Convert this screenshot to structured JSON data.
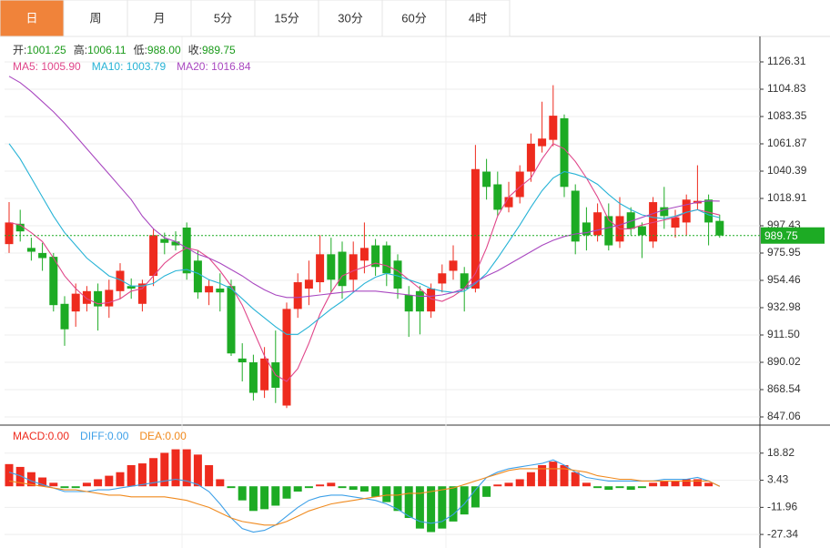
{
  "tabs": [
    "日",
    "周",
    "月",
    "5分",
    "15分",
    "30分",
    "60分",
    "4时"
  ],
  "active_tab": 0,
  "chart_data": [
    {
      "type": "candlestick",
      "info": [
        {
          "label": "开:",
          "value": "1001.25"
        },
        {
          "label": "高:",
          "value": "1006.11"
        },
        {
          "label": "低:",
          "value": "988.00"
        },
        {
          "label": "收:",
          "value": "989.75"
        }
      ],
      "info_value_color": "#1a9a1a",
      "open": [
        983,
        999,
        980,
        976,
        973,
        936,
        930,
        936,
        946,
        934,
        946,
        950,
        936,
        958,
        987,
        985,
        996,
        970,
        945,
        948,
        950,
        893,
        890,
        868,
        890,
        856,
        932,
        948,
        953,
        975,
        977,
        955,
        970,
        982,
        982,
        970,
        943,
        946,
        930,
        952,
        962,
        960,
        948,
        1040,
        1030,
        1012,
        1020,
        1040,
        1060,
        1065,
        1082,
        1025,
        1000,
        990,
        1005,
        985,
        1008,
        997,
        985,
        1012,
        996,
        1000,
        1015,
        1018,
        1001.25
      ],
      "close": [
        1000,
        993,
        977,
        972,
        935,
        916,
        944,
        946,
        934,
        947,
        962,
        948,
        952,
        990,
        984,
        982,
        960,
        945,
        950,
        945,
        897,
        890,
        866,
        893,
        870,
        932,
        953,
        955,
        975,
        955,
        950,
        975,
        980,
        965,
        960,
        948,
        930,
        930,
        948,
        960,
        970,
        948,
        1042,
        1028,
        1010,
        1020,
        1040,
        1062,
        1066,
        1084,
        1028,
        985,
        990,
        1008,
        982,
        1005,
        995,
        990,
        1016,
        1005,
        1004,
        1018,
        1017,
        1000,
        989.75
      ],
      "high": [
        1016,
        1010,
        988,
        984,
        976,
        942,
        952,
        950,
        952,
        955,
        968,
        956,
        955,
        995,
        992,
        993,
        1000,
        978,
        955,
        960,
        955,
        905,
        896,
        902,
        915,
        937,
        960,
        970,
        990,
        988,
        985,
        985,
        1000,
        987,
        985,
        975,
        950,
        950,
        952,
        967,
        982,
        965,
        1061,
        1050,
        1040,
        1032,
        1045,
        1070,
        1095,
        1108,
        1085,
        1030,
        1012,
        1015,
        1015,
        1020,
        1012,
        1000,
        1020,
        1028,
        1010,
        1022,
        1045,
        1022,
        1006.11
      ],
      "low": [
        976,
        985,
        970,
        962,
        930,
        903,
        918,
        930,
        915,
        925,
        940,
        940,
        930,
        950,
        975,
        978,
        955,
        940,
        935,
        930,
        895,
        875,
        860,
        862,
        858,
        854,
        925,
        935,
        945,
        945,
        940,
        945,
        960,
        958,
        950,
        940,
        910,
        912,
        925,
        945,
        955,
        930,
        945,
        1018,
        1005,
        1008,
        1015,
        1032,
        1055,
        1060,
        1020,
        975,
        978,
        985,
        978,
        980,
        990,
        972,
        980,
        995,
        988,
        990,
        1010,
        982,
        988
      ],
      "up_color": "#ee2b1e",
      "down_color": "#1dab24",
      "series": [
        {
          "name": "MA5: 1005.90",
          "color": "#e0468a",
          "values": [
            1000,
            998,
            992,
            985,
            972,
            958,
            948,
            940,
            936,
            937,
            940,
            946,
            948,
            958,
            968,
            975,
            980,
            978,
            972,
            962,
            950,
            935,
            915,
            895,
            880,
            875,
            885,
            905,
            928,
            945,
            958,
            962,
            965,
            968,
            966,
            962,
            955,
            948,
            940,
            938,
            942,
            948,
            960,
            980,
            1005,
            1020,
            1028,
            1035,
            1050,
            1062,
            1058,
            1048,
            1035,
            1020,
            1002,
            995,
            995,
            998,
            1000,
            1002,
            1004,
            1008,
            1010,
            1008,
            1005.9
          ]
        },
        {
          "name": "MA10: 1003.79",
          "color": "#27b3d6",
          "values": [
            1062,
            1050,
            1035,
            1020,
            1005,
            992,
            982,
            972,
            965,
            958,
            955,
            950,
            950,
            952,
            958,
            962,
            963,
            960,
            955,
            952,
            948,
            940,
            932,
            925,
            918,
            912,
            912,
            918,
            925,
            932,
            938,
            945,
            952,
            957,
            960,
            958,
            955,
            952,
            948,
            946,
            945,
            946,
            952,
            960,
            972,
            985,
            998,
            1012,
            1025,
            1035,
            1040,
            1038,
            1035,
            1030,
            1022,
            1015,
            1010,
            1006,
            1004,
            1003,
            1005,
            1008,
            1010,
            1006,
            1003.79
          ]
        },
        {
          "name": "MA20: 1016.84",
          "color": "#a948c0",
          "values": [
            1115,
            1110,
            1103,
            1095,
            1087,
            1078,
            1068,
            1058,
            1048,
            1038,
            1028,
            1018,
            1005,
            995,
            988,
            985,
            980,
            975,
            972,
            968,
            963,
            958,
            952,
            947,
            943,
            941,
            941,
            942,
            943,
            944,
            945,
            946,
            946,
            946,
            945,
            944,
            943,
            942,
            942,
            943,
            945,
            948,
            953,
            958,
            962,
            967,
            972,
            977,
            982,
            986,
            989,
            991,
            992,
            994,
            996,
            998,
            1001,
            1004,
            1007,
            1010,
            1012,
            1014,
            1016,
            1017,
            1016.84
          ]
        }
      ],
      "ylim": [
        842.05,
        1146.36
      ],
      "yticks": [
        1126.31,
        1104.83,
        1083.35,
        1061.87,
        1040.39,
        1018.91,
        997.43,
        975.95,
        954.46,
        932.98,
        {
          "value": 911.5,
          "label": "911.50"
        },
        890.02,
        868.54,
        847.06
      ],
      "grid": true
    },
    {
      "type": "macd",
      "bars": [
        12.6,
        11,
        8,
        5,
        2,
        -1,
        -1,
        2,
        4,
        6,
        8,
        12,
        13,
        16,
        19,
        21,
        21,
        18,
        12,
        4,
        -1,
        -8,
        -14,
        -13,
        -11,
        -7,
        -3,
        -1,
        1,
        2,
        -1,
        -2,
        -3,
        -6,
        -9,
        -14,
        -18,
        -24,
        -26,
        -24,
        -20,
        -16,
        -12,
        -6,
        1,
        2,
        4,
        8,
        12,
        14,
        12,
        8,
        2,
        -1,
        -2,
        -1,
        -2,
        -1,
        2,
        3,
        3,
        4,
        4,
        2,
        0
      ],
      "bar_name": "MACD:0.00",
      "bar_color": "#ee2b1e",
      "bar_neg_color": "#1dab24",
      "series": [
        {
          "name": "DIFF:0.00",
          "color": "#3ea0e8",
          "values": [
            8,
            6,
            3,
            1,
            -1,
            -3,
            -3,
            -3,
            -2,
            -2,
            -1,
            0,
            1,
            2,
            3,
            4,
            3,
            1,
            -3,
            -10,
            -18,
            -24,
            -26,
            -25,
            -22,
            -17,
            -12,
            -8,
            -6,
            -5,
            -5,
            -6,
            -7,
            -8,
            -10,
            -13,
            -17,
            -20,
            -21,
            -20,
            -16,
            -10,
            -2,
            5,
            8,
            10,
            11,
            12,
            13,
            15,
            12,
            8,
            5,
            4,
            3,
            3,
            3,
            3,
            3,
            4,
            4,
            4,
            5,
            3,
            0
          ]
        },
        {
          "name": "DEA:0.00",
          "color": "#f08a1e",
          "values": [
            3,
            2,
            1,
            0,
            -1,
            -2,
            -2,
            -3,
            -4,
            -5,
            -5,
            -6,
            -6,
            -6,
            -6,
            -7,
            -8,
            -10,
            -12,
            -15,
            -18,
            -20,
            -21,
            -22,
            -22,
            -20,
            -17,
            -14,
            -12,
            -10,
            -9,
            -8,
            -7,
            -6,
            -5,
            -5,
            -4,
            -4,
            -3,
            -2,
            -1,
            1,
            3,
            5,
            7,
            9,
            10,
            10,
            10,
            10,
            10,
            9,
            8,
            6,
            5,
            4,
            4,
            3,
            3,
            3,
            3,
            3,
            3,
            3,
            0
          ]
        }
      ],
      "ylim": [
        -34.01,
        33.19
      ],
      "yticks": [
        18.82,
        3.43,
        -11.96,
        -27.34
      ],
      "grid": true
    }
  ]
}
